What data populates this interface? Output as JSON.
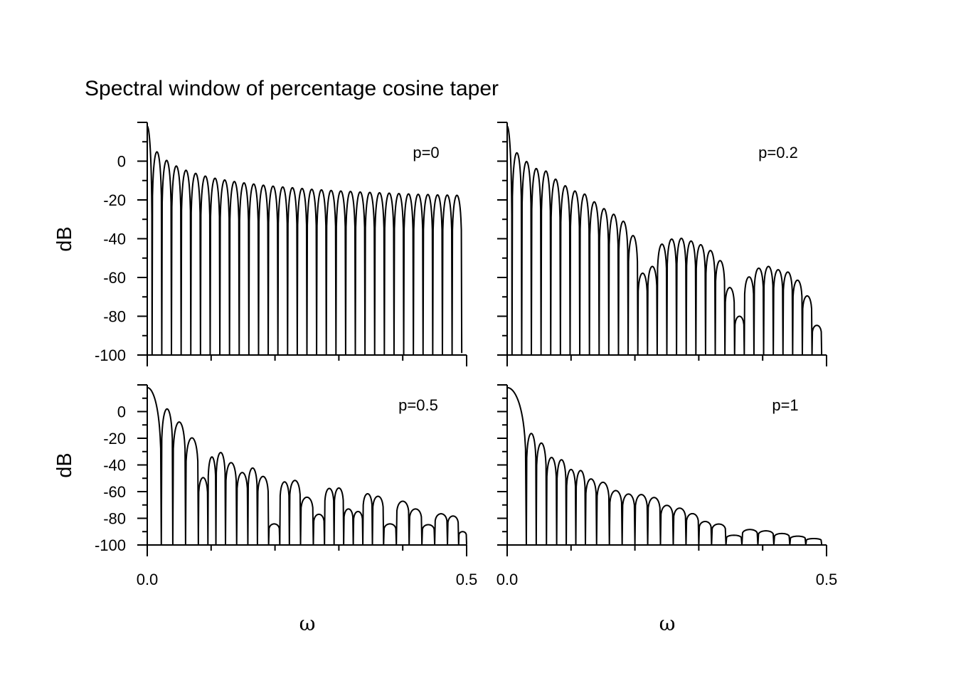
{
  "figure": {
    "title": "Spectral window of percentage cosine taper"
  },
  "chart_data": [
    {
      "type": "line",
      "title": "",
      "annotation": "p=0",
      "p": 0,
      "n_lobes": 33,
      "xlabel": "",
      "ylabel": "dB",
      "xlim": [
        0.0,
        0.5
      ],
      "ylim": [
        -100,
        20
      ],
      "x_ticks": [
        0.0,
        0.1,
        0.2,
        0.3,
        0.4,
        0.5
      ],
      "x_tick_labels": [],
      "y_ticks": [
        0,
        -20,
        -40,
        -60,
        -80,
        -100
      ],
      "y_tick_labels": [
        "0",
        "-20",
        "-40",
        "-60",
        "-80",
        "-100"
      ],
      "series": [
        {
          "values_description_peak_dB": [
            18,
            4.8,
            0.4,
            -2.5,
            -4.7,
            -6.3,
            -7.7,
            -8.8,
            -9.7,
            -10.5,
            -11.2,
            -11.8,
            -12.4,
            -12.9,
            -13.3,
            -13.7,
            -14.1,
            -14.5,
            -14.8,
            -15.1,
            -15.4,
            -15.6,
            -15.9,
            -16.1,
            -16.3,
            -16.5,
            -16.7,
            -16.9,
            -17.1,
            -17.2,
            -17.4,
            -17.5,
            -17.6
          ],
          "x": [
            0,
            0.0152,
            0.0303,
            0.0455,
            0.0606,
            0.0758,
            0.0909,
            0.1061,
            0.1212,
            0.1364,
            0.1515,
            0.1667,
            0.1818,
            0.197,
            0.2121,
            0.2273,
            0.2424,
            0.2576,
            0.2727,
            0.2879,
            0.303,
            0.3182,
            0.3333,
            0.3485,
            0.3636,
            0.3788,
            0.3939,
            0.4091,
            0.4242,
            0.4394,
            0.4545,
            0.4697,
            0.4848
          ],
          "y": [
            18,
            4.8,
            0.4,
            -2.5,
            -4.7,
            -6.3,
            -7.7,
            -8.8,
            -9.7,
            -10.5,
            -11.2,
            -11.8,
            -12.4,
            -12.9,
            -13.3,
            -13.7,
            -14.1,
            -14.5,
            -14.8,
            -15.1,
            -15.4,
            -15.6,
            -15.9,
            -16.1,
            -16.3,
            -16.5,
            -16.7,
            -16.9,
            -17.1,
            -17.2,
            -17.4,
            -17.5,
            -17.6
          ]
        }
      ]
    },
    {
      "type": "line",
      "title": "",
      "annotation": "p=0.2",
      "p": 0.2,
      "xlabel": "",
      "ylabel": "",
      "xlim": [
        0.0,
        0.5
      ],
      "ylim": [
        -100,
        20
      ],
      "x_ticks": [
        0.0,
        0.1,
        0.2,
        0.3,
        0.4,
        0.5
      ],
      "x_tick_labels": [],
      "y_ticks": [
        0,
        -20,
        -40,
        -60,
        -80,
        -100
      ],
      "y_tick_labels": [],
      "series": [
        {
          "x": [
            0,
            0.0152,
            0.0303,
            0.0455,
            0.0606,
            0.0758,
            0.0909,
            0.1061,
            0.1212,
            0.1364,
            0.1515,
            0.1667,
            0.1818,
            0.197,
            0.2121,
            0.2273,
            0.2424,
            0.2576,
            0.2727,
            0.2879,
            0.303,
            0.3182,
            0.3333,
            0.3485,
            0.3636,
            0.3788,
            0.3939,
            0.4091,
            0.4242,
            0.4394,
            0.4545,
            0.4697,
            0.4848
          ],
          "y": [
            18,
            4.3,
            -0.2,
            -3.8,
            -5.1,
            -9.3,
            -12.7,
            -15.4,
            -17.0,
            -21.0,
            -24.5,
            -27.4,
            -31.0,
            -38.4,
            -57.8,
            -54.3,
            -42.8,
            -40.2,
            -39.8,
            -41.2,
            -43.1,
            -46.1,
            -51.3,
            -65.2,
            -80.0,
            -59.7,
            -55.2,
            -54.3,
            -56.0,
            -57.2,
            -61.4,
            -69.5,
            -84.7
          ]
        }
      ]
    },
    {
      "type": "line",
      "title": "",
      "annotation": "p=0.5",
      "p": 0.5,
      "xlabel": "ω",
      "ylabel": "dB",
      "xlim": [
        0.0,
        0.5
      ],
      "ylim": [
        -100,
        20
      ],
      "x_ticks": [
        0.0,
        0.1,
        0.2,
        0.3,
        0.4,
        0.5
      ],
      "x_tick_labels": [
        "0.0",
        "0.5"
      ],
      "y_ticks": [
        0,
        -20,
        -40,
        -60,
        -80,
        -100
      ],
      "y_tick_labels": [
        "0",
        "-20",
        "-40",
        "-60",
        "-80",
        "-100"
      ],
      "series": [
        {
          "x": [
            0,
            0.03,
            0.05,
            0.07,
            0.09,
            0.1,
            0.115,
            0.13,
            0.15,
            0.165,
            0.18,
            0.2,
            0.215,
            0.23,
            0.25,
            0.27,
            0.285,
            0.3,
            0.315,
            0.33,
            0.345,
            0.36,
            0.38,
            0.4,
            0.42,
            0.44,
            0.46,
            0.48,
            0.495
          ],
          "y": [
            18,
            2,
            -7.8,
            -19.7,
            -49.5,
            -34,
            -30.7,
            -38.3,
            -45.7,
            -42.3,
            -48.6,
            -84.2,
            -52.7,
            -51.6,
            -64.2,
            -77,
            -57.6,
            -57.3,
            -73,
            -74.9,
            -61.6,
            -63.5,
            -84.2,
            -67.2,
            -73,
            -84.8,
            -76.6,
            -78.3,
            -90
          ]
        }
      ]
    },
    {
      "type": "line",
      "title": "",
      "annotation": "p=1",
      "p": 1,
      "xlabel": "ω",
      "ylabel": "",
      "xlim": [
        0.0,
        0.5
      ],
      "ylim": [
        -100,
        20
      ],
      "x_ticks": [
        0.0,
        0.1,
        0.2,
        0.3,
        0.4,
        0.5
      ],
      "x_tick_labels": [
        "0.0",
        "0.5"
      ],
      "y_ticks": [
        0,
        -20,
        -40,
        -60,
        -80,
        -100
      ],
      "y_tick_labels": [],
      "series": [
        {
          "x": [
            0,
            0.038,
            0.053,
            0.07,
            0.085,
            0.1,
            0.115,
            0.13,
            0.15,
            0.17,
            0.19,
            0.21,
            0.23,
            0.25,
            0.27,
            0.29,
            0.31,
            0.33,
            0.355,
            0.38,
            0.405,
            0.43,
            0.455,
            0.48
          ],
          "y": [
            18,
            -16.4,
            -23.6,
            -34.4,
            -36.1,
            -43.4,
            -44.2,
            -50.5,
            -53,
            -59.2,
            -61.8,
            -62.2,
            -64.4,
            -70.3,
            -72.4,
            -76.5,
            -82.4,
            -84.3,
            -92.7,
            -88.4,
            -89.4,
            -91.4,
            -93.4,
            -95.2
          ]
        }
      ]
    }
  ]
}
